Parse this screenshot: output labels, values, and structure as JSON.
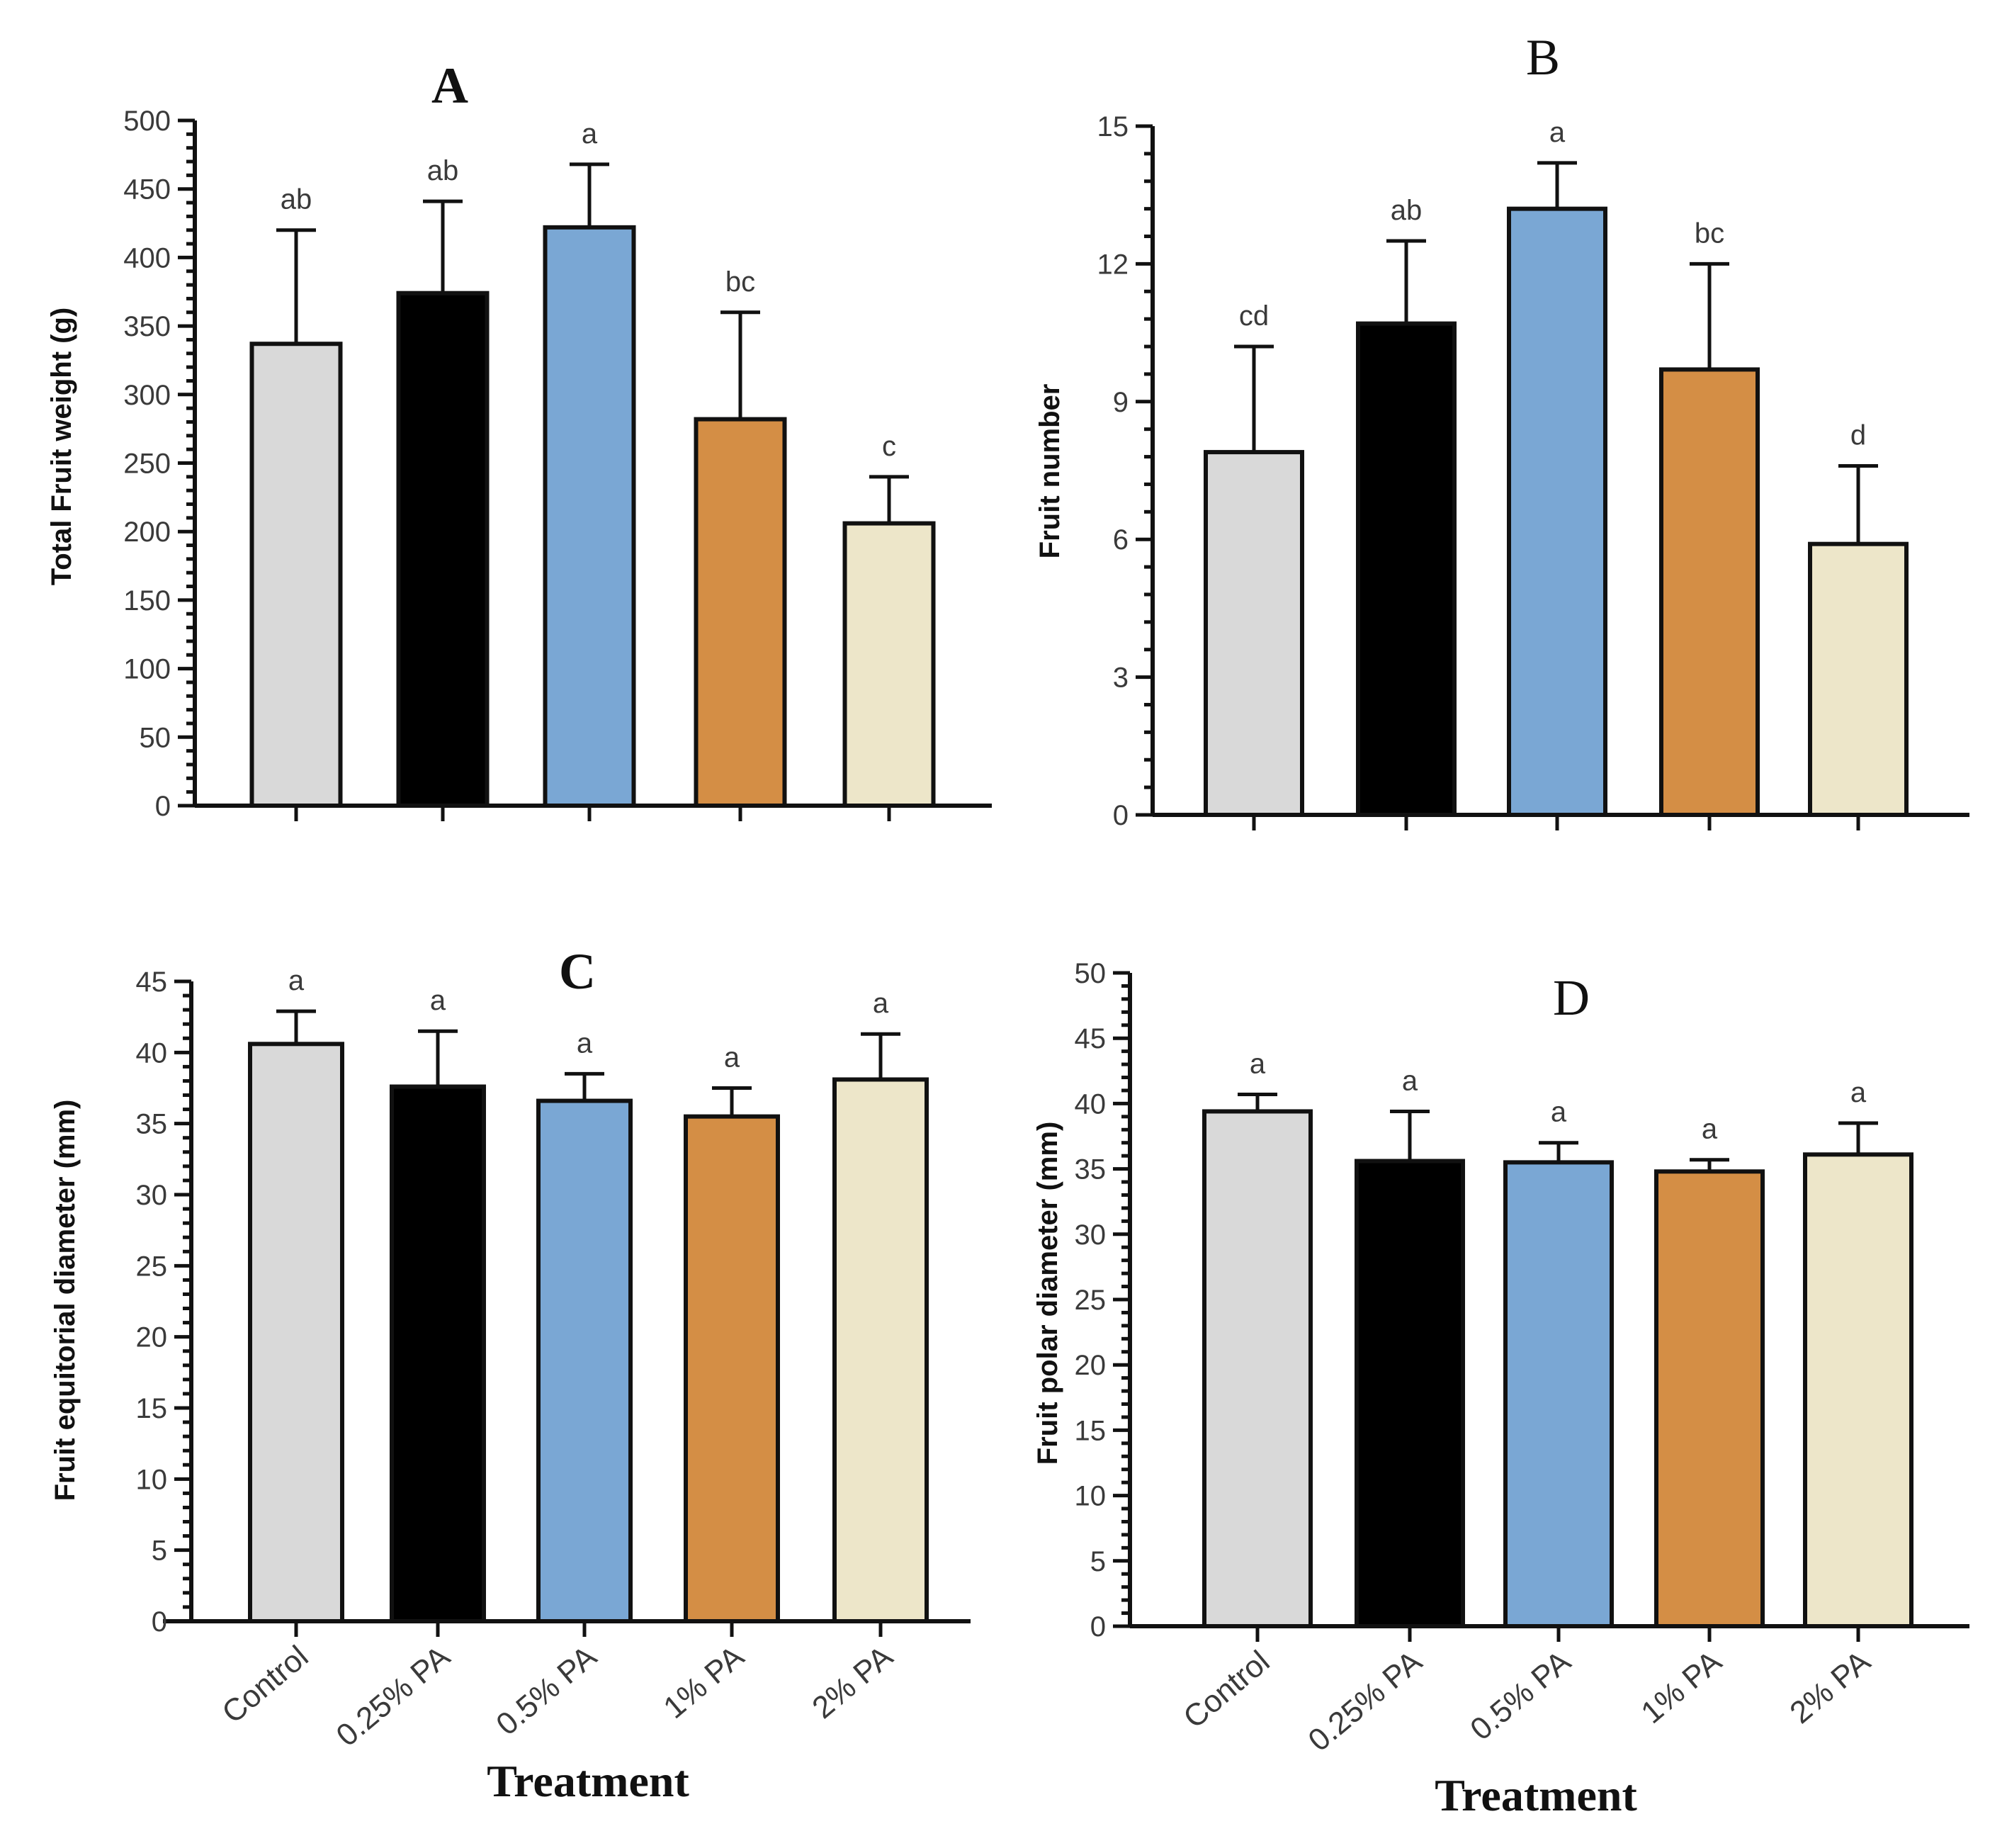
{
  "figure": {
    "x_axis_title": "Treatment",
    "colors": {
      "Control": "#d9d9d9",
      "0.25% PA": "#000000",
      "0.5% PA": "#7aa7d4",
      "1% PA": "#d48e45",
      "2% PA": "#ede6c9"
    }
  },
  "chart_data": [
    {
      "panel": "A",
      "type": "bar",
      "title": "A",
      "ylabel": "Total Fruit weight (g)",
      "xlabel": "",
      "categories": [
        "Control",
        "0.25% PA",
        "0.5% PA",
        "1% PA",
        "2% PA"
      ],
      "values": [
        337,
        374,
        422,
        282,
        206
      ],
      "errors": [
        83,
        67,
        46,
        78,
        34
      ],
      "significance": [
        "ab",
        "ab",
        "a",
        "bc",
        "c"
      ],
      "ylim": [
        0,
        500
      ],
      "yticks": [
        0,
        50,
        100,
        150,
        200,
        250,
        300,
        350,
        400,
        450,
        500
      ],
      "show_category_labels": false
    },
    {
      "panel": "B",
      "type": "bar",
      "title": "B",
      "ylabel": "Fruit number",
      "xlabel": "",
      "categories": [
        "Control",
        "0.25% PA",
        "0.5% PA",
        "1% PA",
        "2% PA"
      ],
      "values": [
        7.9,
        10.7,
        13.2,
        9.7,
        5.9
      ],
      "errors": [
        2.3,
        1.8,
        1.0,
        2.3,
        1.7
      ],
      "significance": [
        "cd",
        "ab",
        "a",
        "bc",
        "d"
      ],
      "ylim": [
        0,
        15
      ],
      "yticks": [
        0,
        3,
        6,
        9,
        12,
        15
      ],
      "show_category_labels": false
    },
    {
      "panel": "C",
      "type": "bar",
      "title": "C",
      "ylabel": "Fruit equitorial diameter (mm)",
      "xlabel": "Treatment",
      "categories": [
        "Control",
        "0.25% PA",
        "0.5% PA",
        "1% PA",
        "2% PA"
      ],
      "values": [
        40.6,
        37.6,
        36.6,
        35.5,
        38.1
      ],
      "errors": [
        2.3,
        3.9,
        1.9,
        2.0,
        3.2
      ],
      "significance": [
        "a",
        "a",
        "a",
        "a",
        "a"
      ],
      "ylim": [
        0,
        45
      ],
      "yticks": [
        0,
        5,
        10,
        15,
        20,
        25,
        30,
        35,
        40,
        45
      ],
      "show_category_labels": true
    },
    {
      "panel": "D",
      "type": "bar",
      "title": "D",
      "ylabel": "Fruit polar diameter (mm)",
      "xlabel": "Treatment",
      "categories": [
        "Control",
        "0.25% PA",
        "0.5% PA",
        "1% PA",
        "2% PA"
      ],
      "values": [
        39.4,
        35.6,
        35.5,
        34.8,
        36.1
      ],
      "errors": [
        1.3,
        3.8,
        1.5,
        0.9,
        2.4
      ],
      "significance": [
        "a",
        "a",
        "a",
        "a",
        "a"
      ],
      "ylim": [
        0,
        50
      ],
      "yticks": [
        0,
        5,
        10,
        15,
        20,
        25,
        30,
        35,
        40,
        45,
        50
      ],
      "show_category_labels": true
    }
  ]
}
